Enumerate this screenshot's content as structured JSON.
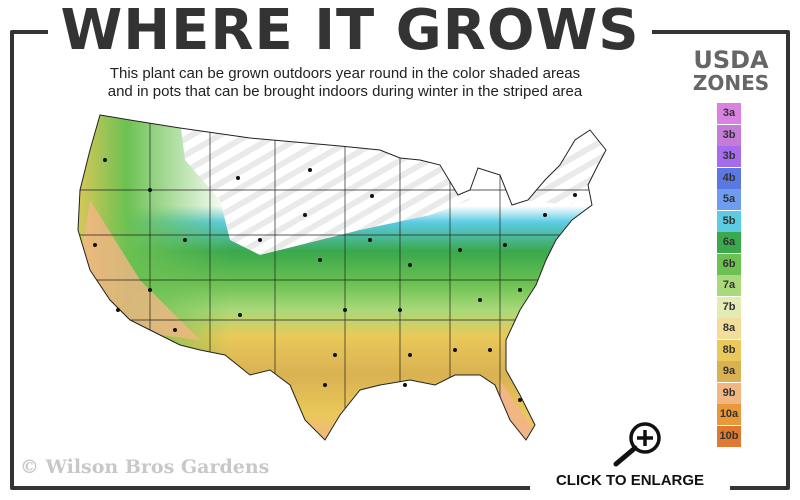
{
  "title": "WHERE IT GROWS",
  "subtitle_line1": "This plant can be grown outdoors year round in the color shaded areas",
  "subtitle_line2": "and in pots that can be brought indoors during winter in the striped area",
  "legend": {
    "title_line1": "USDA",
    "title_line2": "ZONES",
    "zones": [
      {
        "label": "3a",
        "color": "#d982e2"
      },
      {
        "label": "3b",
        "color": "#c67bd8"
      },
      {
        "label": "3b",
        "color": "#a56cec"
      },
      {
        "label": "4b",
        "color": "#5b77e2"
      },
      {
        "label": "5a",
        "color": "#6d9cf2"
      },
      {
        "label": "5b",
        "color": "#5ccbe4"
      },
      {
        "label": "6a",
        "color": "#3aa84c"
      },
      {
        "label": "6b",
        "color": "#6cc152"
      },
      {
        "label": "7a",
        "color": "#a9d97a"
      },
      {
        "label": "7b",
        "color": "#e2ecb4"
      },
      {
        "label": "8a",
        "color": "#f1dd9c"
      },
      {
        "label": "8b",
        "color": "#e9c95a"
      },
      {
        "label": "9a",
        "color": "#d9b152"
      },
      {
        "label": "9b",
        "color": "#f2b584"
      },
      {
        "label": "10a",
        "color": "#e9993a"
      },
      {
        "label": "10b",
        "color": "#e07a32"
      }
    ]
  },
  "copyright": "© Wilson Bros Gardens",
  "enlarge_label": "CLICK TO ENLARGE",
  "enlarge_icon": "magnifier-plus-icon"
}
